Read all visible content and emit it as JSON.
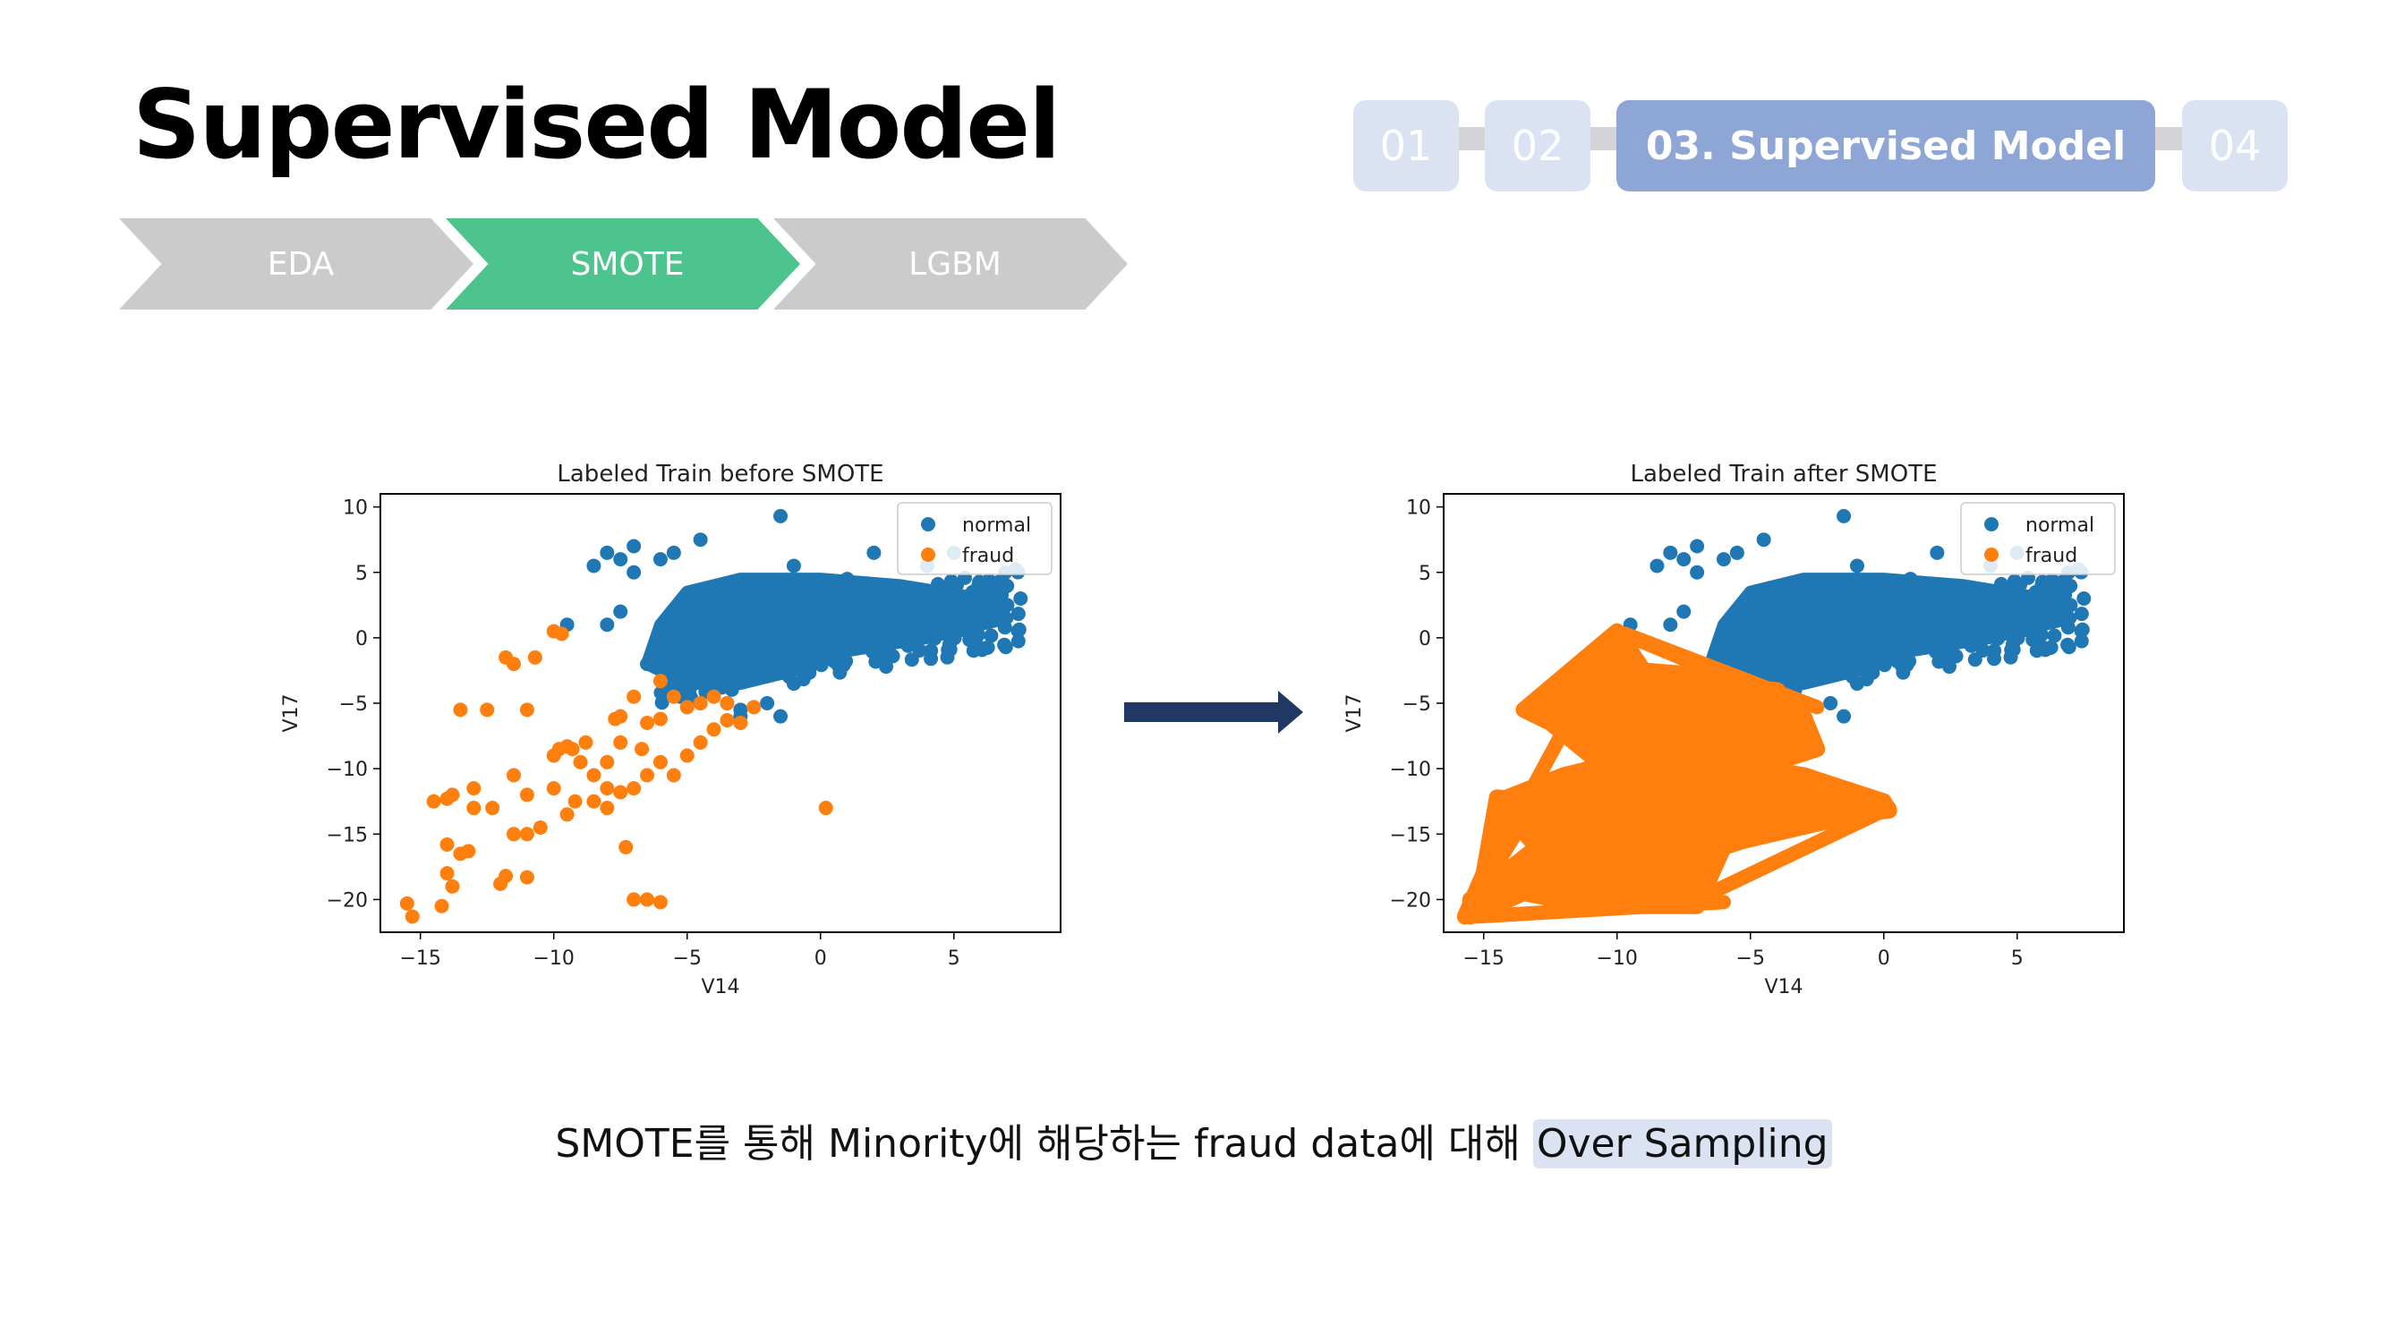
{
  "header": {
    "title": "Supervised Model"
  },
  "steps": [
    {
      "label": "EDA",
      "color": "#cccbcb"
    },
    {
      "label": "SMOTE",
      "color": "#4dc48e"
    },
    {
      "label": "LGBM",
      "color": "#cccbcb"
    }
  ],
  "nav": {
    "items": [
      {
        "label": "01",
        "active": false
      },
      {
        "label": "02",
        "active": false
      },
      {
        "label": "03. Supervised Model",
        "active": true
      },
      {
        "label": "04",
        "active": false
      }
    ],
    "active_color": "#8ea6d6",
    "inactive_color": "#dbe3f3"
  },
  "caption": {
    "text": "SMOTE를 통해 Minority에 해당하는 fraud data에 대해 ",
    "highlight": "Over Sampling"
  },
  "chart_data": [
    {
      "type": "scatter",
      "title": "Labeled Train before SMOTE",
      "xlabel": "V14",
      "ylabel": "V17",
      "xlim": [
        -16.5,
        9
      ],
      "ylim": [
        -22.5,
        11
      ],
      "xticks": [
        -15,
        -10,
        -5,
        0,
        5
      ],
      "yticks": [
        10,
        5,
        0,
        -5,
        -10,
        -15,
        -20
      ],
      "xtick_labels": [
        "−15",
        "−10",
        "−5",
        "0",
        "5"
      ],
      "ytick_labels": [
        "10",
        "5",
        "0",
        "−5",
        "−10",
        "−15",
        "−20"
      ],
      "legend": {
        "position": "top-right",
        "entries": [
          "normal",
          "fraud"
        ]
      },
      "series": [
        {
          "name": "normal",
          "color": "#1f77b4",
          "shape": "cluster",
          "points": [
            [
              -8,
              6.5
            ],
            [
              -7.5,
              6
            ],
            [
              -7,
              7
            ],
            [
              -8.5,
              5.5
            ],
            [
              -4.5,
              7.5
            ],
            [
              -1.5,
              9.3
            ],
            [
              -7,
              5
            ],
            [
              -6,
              6
            ],
            [
              -5.5,
              6.5
            ],
            [
              -9.5,
              1
            ],
            [
              -8,
              1
            ],
            [
              -7.5,
              2
            ],
            [
              -6,
              -1.5
            ],
            [
              -5.5,
              -2
            ],
            [
              -4,
              -4
            ],
            [
              -3.5,
              -5
            ],
            [
              -3,
              -5.5
            ],
            [
              -2,
              -5
            ],
            [
              -1.5,
              -6
            ],
            [
              -1,
              -3.5
            ],
            [
              -4,
              -2.5
            ],
            [
              -6.5,
              -2
            ],
            [
              -5,
              -3
            ],
            [
              -2.5,
              -3
            ],
            [
              2,
              6.5
            ],
            [
              4,
              5.5
            ],
            [
              5,
              6.5
            ],
            [
              6.5,
              4
            ],
            [
              7.5,
              3
            ],
            [
              7,
              2.5
            ],
            [
              6,
              1.5
            ],
            [
              -3,
              4
            ],
            [
              -4,
              3
            ],
            [
              -5,
              2
            ],
            [
              -2,
              2
            ],
            [
              0,
              3
            ],
            [
              1,
              4.5
            ],
            [
              2.5,
              3.5
            ],
            [
              3,
              1
            ],
            [
              4.5,
              2.5
            ],
            [
              -1,
              -1
            ],
            [
              -2.5,
              0
            ],
            [
              0.5,
              0
            ],
            [
              2,
              -0.5
            ],
            [
              -3.5,
              -1
            ],
            [
              -4.5,
              0.5
            ],
            [
              -1,
              5.5
            ],
            [
              1.5,
              2
            ],
            [
              -5.5,
              -4
            ],
            [
              -4.5,
              -5
            ],
            [
              -3,
              -6
            ]
          ],
          "band": [
            [
              -6,
              1
            ],
            [
              -5,
              3.5
            ],
            [
              -3,
              4.5
            ],
            [
              0,
              4.5
            ],
            [
              3,
              4
            ],
            [
              6,
              3
            ],
            [
              7,
              1.5
            ],
            [
              4,
              0
            ],
            [
              1,
              -1
            ],
            [
              -1,
              -2.5
            ],
            [
              -3,
              -3.5
            ],
            [
              -5,
              -3.5
            ],
            [
              -6.5,
              -2
            ]
          ]
        },
        {
          "name": "fraud",
          "color": "#ff7f0e",
          "points": [
            [
              -15.5,
              -20.3
            ],
            [
              -15.3,
              -21.3
            ],
            [
              -14.5,
              -12.5
            ],
            [
              -14,
              -12.3
            ],
            [
              -13.8,
              -12
            ],
            [
              -14,
              -15.8
            ],
            [
              -13.5,
              -16.5
            ],
            [
              -13.2,
              -16.3
            ],
            [
              -14,
              -18
            ],
            [
              -13.8,
              -19
            ],
            [
              -14.2,
              -20.5
            ],
            [
              -13,
              -11.5
            ],
            [
              -13,
              -13
            ],
            [
              -12,
              -18.8
            ],
            [
              -12.3,
              -13
            ],
            [
              -11.8,
              -18.2
            ],
            [
              -11.5,
              -10.5
            ],
            [
              -11.5,
              -15
            ],
            [
              -11,
              -18.3
            ],
            [
              -11,
              -15
            ],
            [
              -10.5,
              -14.5
            ],
            [
              -11,
              -12
            ],
            [
              -10,
              -11.5
            ],
            [
              -10,
              -9
            ],
            [
              -9.8,
              -8.5
            ],
            [
              -9.5,
              -8.3
            ],
            [
              -9.3,
              -8.5
            ],
            [
              -9,
              -9.5
            ],
            [
              -8.8,
              -8
            ],
            [
              -8.5,
              -10.5
            ],
            [
              -9.5,
              -13.5
            ],
            [
              -9.2,
              -12.5
            ],
            [
              -8.5,
              -12.5
            ],
            [
              -8,
              -11.5
            ],
            [
              -8,
              -13
            ],
            [
              -7.5,
              -11.8
            ],
            [
              -7,
              -11.5
            ],
            [
              -6.5,
              -10.5
            ],
            [
              -6,
              -9.5
            ],
            [
              -5.5,
              -10.5
            ],
            [
              -5,
              -9
            ],
            [
              -4.5,
              -8
            ],
            [
              -4,
              -7
            ],
            [
              -3.5,
              -6.3
            ],
            [
              -3,
              -6.5
            ],
            [
              -3.5,
              -5
            ],
            [
              -2.5,
              -5.3
            ],
            [
              -6,
              -3.3
            ],
            [
              -5.5,
              -4.5
            ],
            [
              -5,
              -5.3
            ],
            [
              -4.5,
              -5
            ],
            [
              -4,
              -4.5
            ],
            [
              -7,
              -4.5
            ],
            [
              -6.5,
              -6.5
            ],
            [
              -7.5,
              -8
            ],
            [
              -8,
              -9.5
            ],
            [
              -12.5,
              -5.5
            ],
            [
              -13.5,
              -5.5
            ],
            [
              -11,
              -5.5
            ],
            [
              -11.8,
              -1.5
            ],
            [
              -11.5,
              -2
            ],
            [
              -10.7,
              -1.5
            ],
            [
              -10,
              0.5
            ],
            [
              -9.7,
              0.3
            ],
            [
              -7.5,
              -6
            ],
            [
              -7.7,
              -6.2
            ],
            [
              -6.7,
              -8.5
            ],
            [
              -7.3,
              -16
            ],
            [
              -7,
              -20
            ],
            [
              -6.5,
              -20
            ],
            [
              -6,
              -20.2
            ],
            [
              -6,
              -6.2
            ],
            [
              0.2,
              -13
            ]
          ]
        }
      ]
    },
    {
      "type": "scatter",
      "title": "Labeled Train after SMOTE",
      "xlabel": "V14",
      "ylabel": "V17",
      "xlim": [
        -16.5,
        9
      ],
      "ylim": [
        -22.5,
        11
      ],
      "xticks": [
        -15,
        -10,
        -5,
        0,
        5
      ],
      "yticks": [
        10,
        5,
        0,
        -5,
        -10,
        -15,
        -20
      ],
      "xtick_labels": [
        "−15",
        "−10",
        "−5",
        "0",
        "5"
      ],
      "ytick_labels": [
        "10",
        "5",
        "0",
        "−5",
        "−10",
        "−15",
        "−20"
      ],
      "legend": {
        "position": "top-right",
        "entries": [
          "normal",
          "fraud"
        ]
      },
      "series": [
        {
          "name": "normal",
          "color": "#1f77b4",
          "shape": "cluster"
        },
        {
          "name": "fraud",
          "color": "#ff7f0e",
          "shape": "oversampled-mass",
          "polygons": [
            [
              [
                -15.5,
                -20.5
              ],
              [
                -14,
                -15.5
              ],
              [
                -13,
                -12.5
              ],
              [
                -14.5,
                -12.2
              ],
              [
                -15,
                -18
              ],
              [
                -15.7,
                -21.3
              ]
            ],
            [
              [
                -13.5,
                -5.5
              ],
              [
                -10,
                0.5
              ],
              [
                -9,
                -2.5
              ],
              [
                -6,
                -3
              ],
              [
                -3,
                -6
              ],
              [
                -2.5,
                -8.5
              ],
              [
                -4,
                -9.5
              ],
              [
                -5.5,
                -10
              ],
              [
                -7,
                -12
              ],
              [
                -8.5,
                -13
              ],
              [
                -10,
                -12
              ],
              [
                -11,
                -9
              ],
              [
                -12.5,
                -6.5
              ]
            ],
            [
              [
                -14.5,
                -12.5
              ],
              [
                -12,
                -10.5
              ],
              [
                -9,
                -9
              ],
              [
                -6,
                -9.5
              ],
              [
                -3,
                -10.5
              ],
              [
                0,
                -12.5
              ],
              [
                0.2,
                -13.2
              ],
              [
                -3,
                -14
              ],
              [
                -6,
                -16
              ],
              [
                -7,
                -20.5
              ],
              [
                -8,
                -20.5
              ],
              [
                -11,
                -20.5
              ],
              [
                -13.5,
                -19.5
              ],
              [
                -15.5,
                -21.3
              ],
              [
                -15.5,
                -20
              ],
              [
                -13,
                -16
              ]
            ],
            [
              [
                -6.5,
                -3.5
              ],
              [
                -4,
                -4
              ],
              [
                -3,
                -6.3
              ],
              [
                -5,
                -5.3
              ],
              [
                -6,
                -4.8
              ]
            ]
          ],
          "lines": [
            [
              [
                -15.5,
                -20.3
              ],
              [
                -10,
                0.5
              ]
            ],
            [
              [
                -15.3,
                -21.3
              ],
              [
                -6,
                -20.2
              ]
            ],
            [
              [
                -14.5,
                -12.5
              ],
              [
                0.2,
                -13
              ]
            ],
            [
              [
                -13.5,
                -5.5
              ],
              [
                -3,
                -6.5
              ]
            ],
            [
              [
                -11,
                -18.3
              ],
              [
                0.2,
                -13
              ]
            ],
            [
              [
                -7,
                -20
              ],
              [
                0.2,
                -13
              ]
            ],
            [
              [
                -10,
                0.5
              ],
              [
                -3.5,
                -5
              ]
            ],
            [
              [
                -12,
                -18.8
              ],
              [
                -8.5,
                -10.5
              ]
            ],
            [
              [
                -13.8,
                -12
              ],
              [
                -5,
                -9
              ]
            ],
            [
              [
                -9.7,
                0.3
              ],
              [
                -2.5,
                -5.3
              ]
            ],
            [
              [
                -14,
                -18
              ],
              [
                -6,
                -9.5
              ]
            ],
            [
              [
                -11.5,
                -15
              ],
              [
                -4,
                -7
              ]
            ]
          ]
        }
      ]
    }
  ]
}
